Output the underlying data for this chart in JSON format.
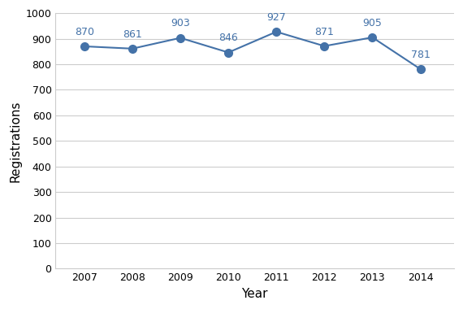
{
  "years": [
    2007,
    2008,
    2009,
    2010,
    2011,
    2012,
    2013,
    2014
  ],
  "values": [
    870,
    861,
    903,
    846,
    927,
    871,
    905,
    781
  ],
  "line_color": "#4472a8",
  "marker_color": "#4472a8",
  "xlabel": "Year",
  "ylabel": "Registrations",
  "ylim": [
    0,
    1000
  ],
  "ytick_step": 100,
  "label_fontsize": 9,
  "annotation_fontsize": 9,
  "axis_label_fontsize": 11,
  "background_color": "#ffffff",
  "plot_bg_color": "#ffffff",
  "grid_color": "#cccccc",
  "border_color": "#cccccc"
}
